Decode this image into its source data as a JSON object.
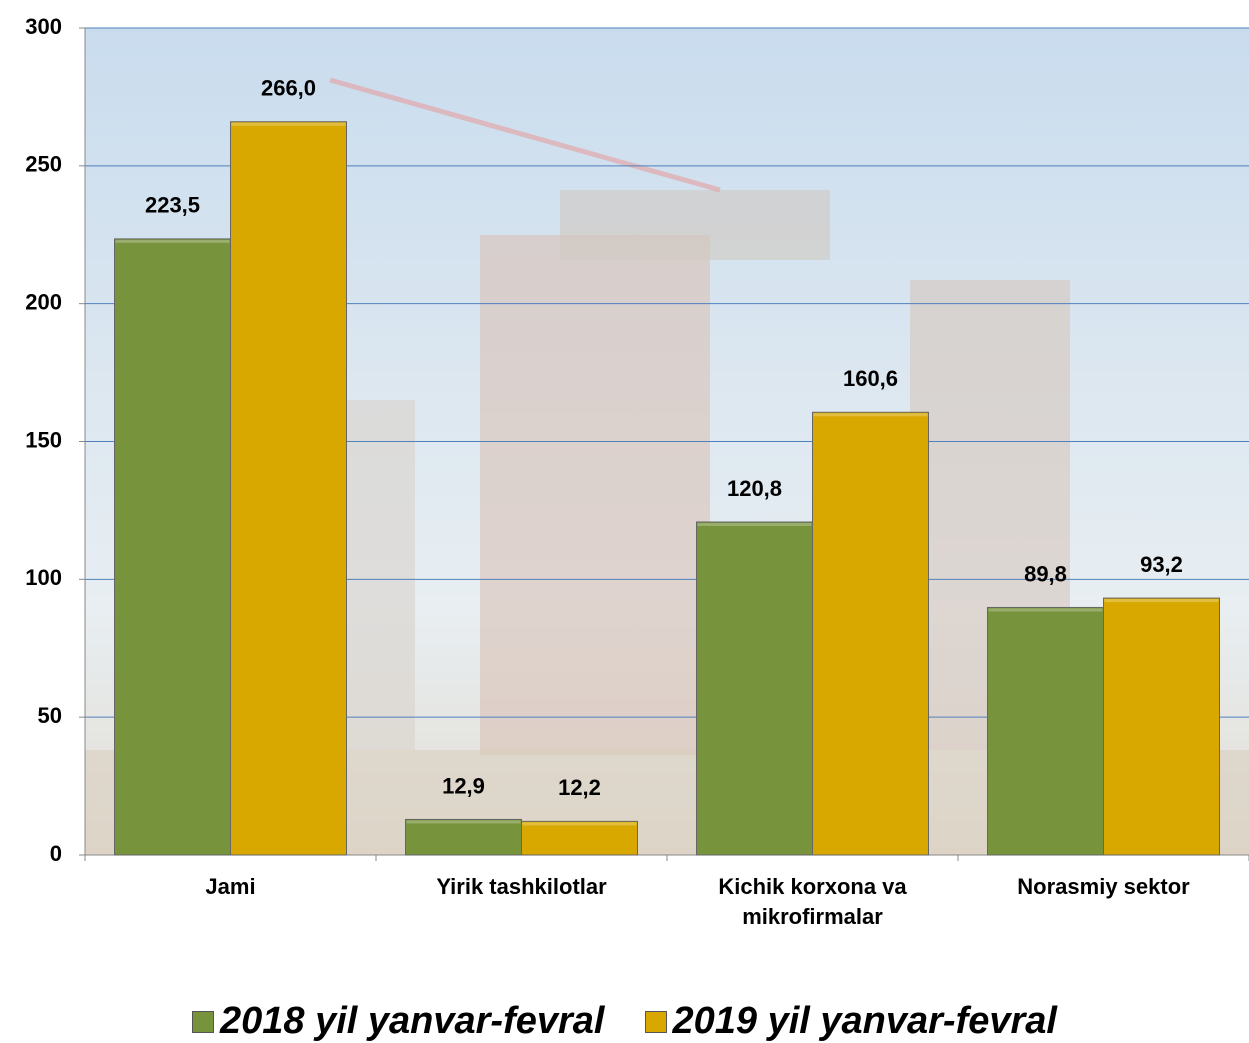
{
  "chart_data": {
    "type": "bar",
    "categories": [
      "Jami",
      "Yirik tashkilotlar",
      "Kichik korxona va mikrofirmalar",
      "Norasmiy sektor"
    ],
    "series": [
      {
        "name": "2018 yil yanvar-fevral",
        "color": "#77933c",
        "values": [
          223.5,
          12.9,
          120.8,
          89.8
        ],
        "value_labels": [
          "223,5",
          "12,9",
          "120,8",
          "89,8"
        ]
      },
      {
        "name": "2019 yil yanvar-fevral",
        "color": "#d9a800",
        "values": [
          266.0,
          12.2,
          160.6,
          93.2
        ],
        "value_labels": [
          "266,0",
          "12,2",
          "160,6",
          "93,2"
        ]
      }
    ],
    "ylim": [
      0,
      300
    ],
    "yticks": [
      0,
      50,
      100,
      150,
      200,
      250,
      300
    ],
    "grid": true,
    "legend": "bottom"
  }
}
